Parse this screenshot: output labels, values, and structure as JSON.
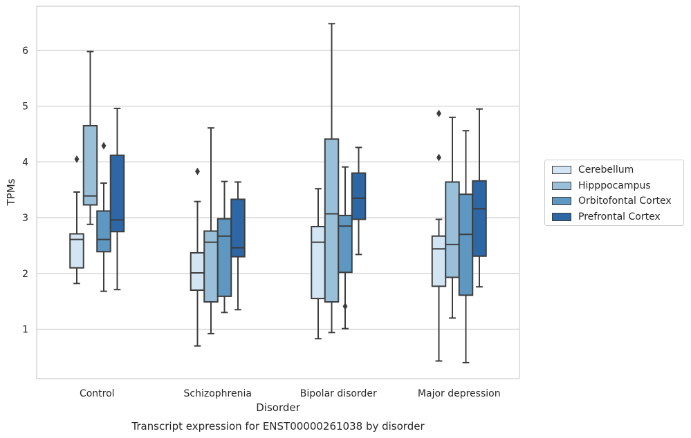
{
  "chart_data": {
    "type": "box",
    "title": "",
    "caption": "Transcript expression for ENST00000261038 by disorder",
    "xlabel": "Disorder",
    "ylabel": "TPMs",
    "ylim": [
      0.1,
      6.8
    ],
    "yticks": [
      1,
      2,
      3,
      4,
      5,
      6
    ],
    "grid": "horizontal",
    "legend_position": "right",
    "categories": [
      "Control",
      "Schizophrenia",
      "Bipolar disorder",
      "Major depression"
    ],
    "series": [
      {
        "name": "Cerebellum",
        "color": "#d3e4f3",
        "boxes": [
          {
            "whisker_low": 1.82,
            "q1": 2.1,
            "median": 2.61,
            "q3": 2.71,
            "whisker_high": 3.46,
            "outliers": [
              4.05
            ]
          },
          {
            "whisker_low": 0.7,
            "q1": 1.7,
            "median": 2.01,
            "q3": 2.37,
            "whisker_high": 3.29,
            "outliers": [
              3.83
            ]
          },
          {
            "whisker_low": 0.83,
            "q1": 1.55,
            "median": 2.56,
            "q3": 2.84,
            "whisker_high": 3.52,
            "outliers": []
          },
          {
            "whisker_low": 0.43,
            "q1": 1.77,
            "median": 2.44,
            "q3": 2.67,
            "whisker_high": 2.97,
            "outliers": [
              4.08,
              4.87
            ]
          }
        ]
      },
      {
        "name": "Hipppocampus",
        "color": "#9ac0d9",
        "boxes": [
          {
            "whisker_low": 2.88,
            "q1": 3.23,
            "median": 3.39,
            "q3": 4.65,
            "whisker_high": 5.98,
            "outliers": []
          },
          {
            "whisker_low": 0.92,
            "q1": 1.49,
            "median": 2.56,
            "q3": 2.76,
            "whisker_high": 4.61,
            "outliers": []
          },
          {
            "whisker_low": 0.94,
            "q1": 1.49,
            "median": 3.07,
            "q3": 4.41,
            "whisker_high": 6.48,
            "outliers": []
          },
          {
            "whisker_low": 1.2,
            "q1": 1.93,
            "median": 2.52,
            "q3": 3.64,
            "whisker_high": 4.8,
            "outliers": []
          }
        ]
      },
      {
        "name": "Orbitofontal Cortex",
        "color": "#5e98c2",
        "boxes": [
          {
            "whisker_low": 1.68,
            "q1": 2.39,
            "median": 2.61,
            "q3": 3.12,
            "whisker_high": 3.62,
            "outliers": [
              4.29
            ]
          },
          {
            "whisker_low": 1.3,
            "q1": 1.59,
            "median": 2.67,
            "q3": 2.98,
            "whisker_high": 3.65,
            "outliers": []
          },
          {
            "whisker_low": 1.01,
            "q1": 2.02,
            "median": 2.85,
            "q3": 3.04,
            "whisker_high": 3.91,
            "outliers": [
              1.41
            ]
          },
          {
            "whisker_low": 0.4,
            "q1": 1.61,
            "median": 2.7,
            "q3": 3.42,
            "whisker_high": 4.56,
            "outliers": []
          }
        ]
      },
      {
        "name": "Prefrontal Cortex",
        "color": "#2d67a6",
        "boxes": [
          {
            "whisker_low": 1.71,
            "q1": 2.75,
            "median": 2.96,
            "q3": 4.12,
            "whisker_high": 4.96,
            "outliers": []
          },
          {
            "whisker_low": 1.35,
            "q1": 2.3,
            "median": 2.46,
            "q3": 3.33,
            "whisker_high": 3.64,
            "outliers": []
          },
          {
            "whisker_low": 2.34,
            "q1": 2.97,
            "median": 3.35,
            "q3": 3.8,
            "whisker_high": 4.26,
            "outliers": []
          },
          {
            "whisker_low": 1.76,
            "q1": 2.31,
            "median": 3.16,
            "q3": 3.66,
            "whisker_high": 4.95,
            "outliers": []
          }
        ]
      }
    ]
  }
}
